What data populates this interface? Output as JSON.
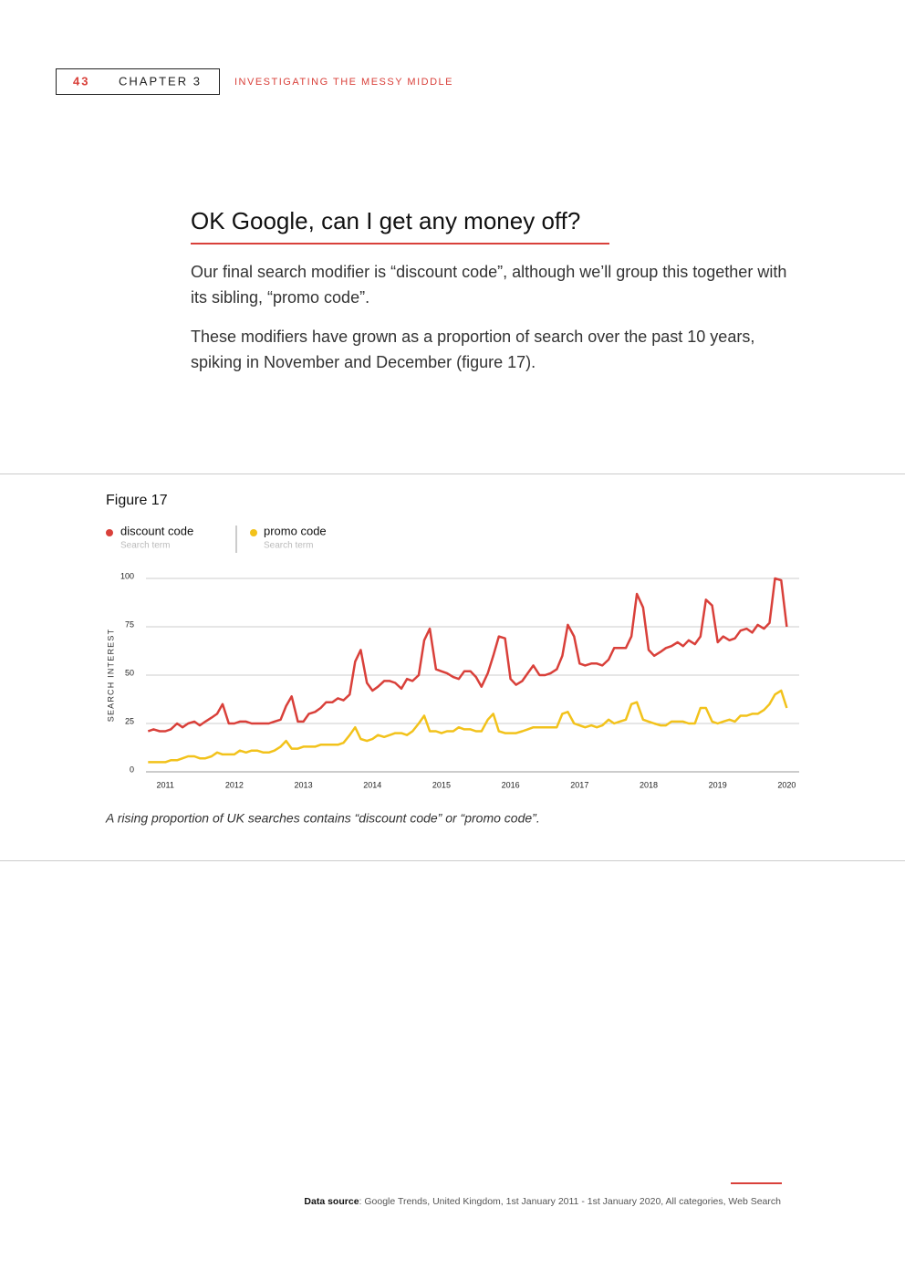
{
  "header": {
    "page_number": "43",
    "chapter": "CHAPTER 3",
    "section": "INVESTIGATING THE MESSY MIDDLE"
  },
  "heading": "OK Google, can I get any money off?",
  "paragraphs": [
    "Our final search modifier is “discount code”, although we’ll group this together with its sibling, “promo code”.",
    "These modifiers have grown as a proportion of search over the past 10 years, spiking in November and December (figure 17)."
  ],
  "figure_label": "Figure 17",
  "caption": "A rising proportion of UK searches contains “discount code” or “promo code”.",
  "source_label": "Data source",
  "source_text": ": Google Trends, United Kingdom, 1st January 2011 - 1st January 2020, All categories, Web Search",
  "chart_data": {
    "type": "line",
    "y_label": "SEARCH INTEREST",
    "ylim": [
      0,
      100
    ],
    "yticks": [
      0,
      25,
      50,
      75,
      100
    ],
    "grid": true,
    "xlim": [
      2010.72,
      2020.18
    ],
    "xticks": [
      2011,
      2012,
      2013,
      2014,
      2015,
      2016,
      2017,
      2018,
      2019,
      2020
    ],
    "x": [
      2010.75,
      2010.83,
      2010.92,
      2011,
      2011.08,
      2011.17,
      2011.25,
      2011.33,
      2011.42,
      2011.5,
      2011.58,
      2011.67,
      2011.75,
      2011.83,
      2011.92,
      2012,
      2012.08,
      2012.17,
      2012.25,
      2012.33,
      2012.42,
      2012.5,
      2012.58,
      2012.67,
      2012.75,
      2012.83,
      2012.92,
      2013,
      2013.08,
      2013.17,
      2013.25,
      2013.33,
      2013.42,
      2013.5,
      2013.58,
      2013.67,
      2013.75,
      2013.83,
      2013.92,
      2014,
      2014.08,
      2014.17,
      2014.25,
      2014.33,
      2014.42,
      2014.5,
      2014.58,
      2014.67,
      2014.75,
      2014.83,
      2014.92,
      2015,
      2015.08,
      2015.17,
      2015.25,
      2015.33,
      2015.42,
      2015.5,
      2015.58,
      2015.67,
      2015.75,
      2015.83,
      2015.92,
      2016,
      2016.08,
      2016.17,
      2016.25,
      2016.33,
      2016.42,
      2016.5,
      2016.58,
      2016.67,
      2016.75,
      2016.83,
      2016.92,
      2017,
      2017.08,
      2017.17,
      2017.25,
      2017.33,
      2017.42,
      2017.5,
      2017.58,
      2017.67,
      2017.75,
      2017.83,
      2017.92,
      2018,
      2018.08,
      2018.17,
      2018.25,
      2018.33,
      2018.42,
      2018.5,
      2018.58,
      2018.67,
      2018.75,
      2018.83,
      2018.92,
      2019,
      2019.08,
      2019.17,
      2019.25,
      2019.33,
      2019.42,
      2019.5,
      2019.58,
      2019.67,
      2019.75,
      2019.83,
      2019.92,
      2020
    ],
    "series": [
      {
        "name": "discount code",
        "subtitle": "Search term",
        "color": "#d9403a",
        "values": [
          21,
          22,
          21,
          21,
          22,
          25,
          23,
          25,
          26,
          24,
          26,
          28,
          30,
          35,
          25,
          25,
          26,
          26,
          25,
          25,
          25,
          25,
          26,
          27,
          34,
          39,
          26,
          26,
          30,
          31,
          33,
          36,
          36,
          38,
          37,
          40,
          57,
          63,
          46,
          42,
          44,
          47,
          47,
          46,
          43,
          48,
          47,
          50,
          68,
          74,
          53,
          52,
          51,
          49,
          48,
          52,
          52,
          49,
          44,
          51,
          60,
          70,
          69,
          48,
          45,
          47,
          51,
          55,
          50,
          50,
          51,
          53,
          60,
          76,
          70,
          56,
          55,
          56,
          56,
          55,
          58,
          64,
          64,
          64,
          70,
          92,
          85,
          63,
          60,
          62,
          64,
          65,
          67,
          65,
          68,
          66,
          70,
          89,
          86,
          67,
          70,
          68,
          69,
          73,
          74,
          72,
          76,
          74,
          77,
          100,
          99,
          75
        ]
      },
      {
        "name": "promo code",
        "subtitle": "Search term",
        "color": "#f2c21b",
        "values": [
          5,
          5,
          5,
          5,
          6,
          6,
          7,
          8,
          8,
          7,
          7,
          8,
          10,
          9,
          9,
          9,
          11,
          10,
          11,
          11,
          10,
          10,
          11,
          13,
          16,
          12,
          12,
          13,
          13,
          13,
          14,
          14,
          14,
          14,
          15,
          19,
          23,
          17,
          16,
          17,
          19,
          18,
          19,
          20,
          20,
          19,
          21,
          25,
          29,
          21,
          21,
          20,
          21,
          21,
          23,
          22,
          22,
          21,
          21,
          27,
          30,
          21,
          20,
          20,
          20,
          21,
          22,
          23,
          23,
          23,
          23,
          23,
          30,
          31,
          25,
          24,
          23,
          24,
          23,
          24,
          27,
          25,
          26,
          27,
          35,
          36,
          27,
          26,
          25,
          24,
          24,
          26,
          26,
          26,
          25,
          25,
          33,
          33,
          26,
          25,
          26,
          27,
          26,
          29,
          29,
          30,
          30,
          32,
          35,
          40,
          42,
          33
        ]
      }
    ]
  }
}
